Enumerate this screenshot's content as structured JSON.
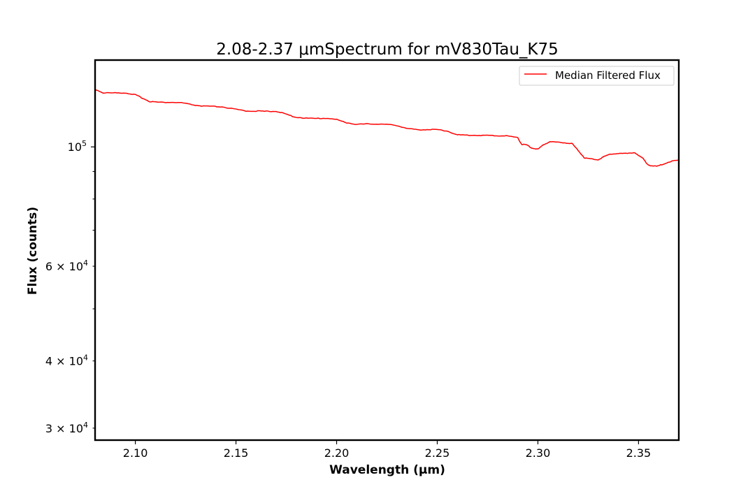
{
  "chart_data": {
    "type": "line",
    "title": "2.08-2.37 μmSpectrum for mV830Tau_K75",
    "xlabel": "Wavelength (μm)",
    "ylabel": "Flux (counts)",
    "xlim": [
      2.08,
      2.37
    ],
    "ylim": [
      28500,
      145000
    ],
    "yscale": "log",
    "grid": false,
    "legend_position": "top-right",
    "x_ticks": [
      {
        "value": 2.1,
        "label": "2.10"
      },
      {
        "value": 2.15,
        "label": "2.15"
      },
      {
        "value": 2.2,
        "label": "2.20"
      },
      {
        "value": 2.25,
        "label": "2.25"
      },
      {
        "value": 2.3,
        "label": "2.30"
      },
      {
        "value": 2.35,
        "label": "2.35"
      }
    ],
    "y_major_ticks": [
      {
        "value": 100000,
        "base": "10",
        "exp": "5"
      }
    ],
    "y_minor_ticks": [
      {
        "value": 30000,
        "coef": "3",
        "base": "10",
        "exp": "4",
        "labeled": true
      },
      {
        "value": 40000,
        "coef": "4",
        "base": "10",
        "exp": "4",
        "labeled": true
      },
      {
        "value": 50000,
        "labeled": false
      },
      {
        "value": 60000,
        "coef": "6",
        "base": "10",
        "exp": "4",
        "labeled": true
      },
      {
        "value": 70000,
        "labeled": false
      },
      {
        "value": 80000,
        "labeled": false
      },
      {
        "value": 90000,
        "labeled": false
      }
    ],
    "series": [
      {
        "name": "Median Filtered Flux",
        "color": "#ff0000",
        "x": [
          2.08,
          2.084,
          2.09,
          2.095,
          2.1,
          2.103,
          2.107,
          2.112,
          2.118,
          2.123,
          2.128,
          2.133,
          2.138,
          2.143,
          2.15,
          2.155,
          2.16,
          2.165,
          2.17,
          2.174,
          2.179,
          2.184,
          2.19,
          2.195,
          2.2,
          2.205,
          2.21,
          2.215,
          2.22,
          2.225,
          2.23,
          2.235,
          2.24,
          2.245,
          2.25,
          2.255,
          2.26,
          2.265,
          2.27,
          2.275,
          2.28,
          2.285,
          2.29,
          2.292,
          2.294,
          2.297,
          2.3,
          2.303,
          2.306,
          2.31,
          2.313,
          2.317,
          2.32,
          2.323,
          2.326,
          2.33,
          2.333,
          2.336,
          2.34,
          2.343,
          2.346,
          2.348,
          2.35,
          2.352,
          2.354,
          2.356,
          2.359,
          2.362,
          2.366,
          2.37
        ],
        "y": [
          128000,
          126000,
          126000,
          126000,
          125000,
          123500,
          121500,
          121000,
          121000,
          120800,
          119800,
          119100,
          118900,
          118700,
          117400,
          116600,
          116600,
          116400,
          116500,
          115300,
          113700,
          113100,
          112900,
          113100,
          112400,
          110900,
          110100,
          110300,
          110300,
          110100,
          109600,
          108200,
          107600,
          107700,
          107700,
          107000,
          105300,
          105100,
          105100,
          105000,
          104900,
          104800,
          104000,
          101000,
          101000,
          99500,
          99000,
          101000,
          102300,
          102000,
          101800,
          101400,
          98500,
          95500,
          95000,
          94700,
          96000,
          97000,
          97200,
          97200,
          97500,
          97400,
          96500,
          95500,
          93000,
          92300,
          92000,
          92800,
          94000,
          94500
        ]
      }
    ]
  }
}
